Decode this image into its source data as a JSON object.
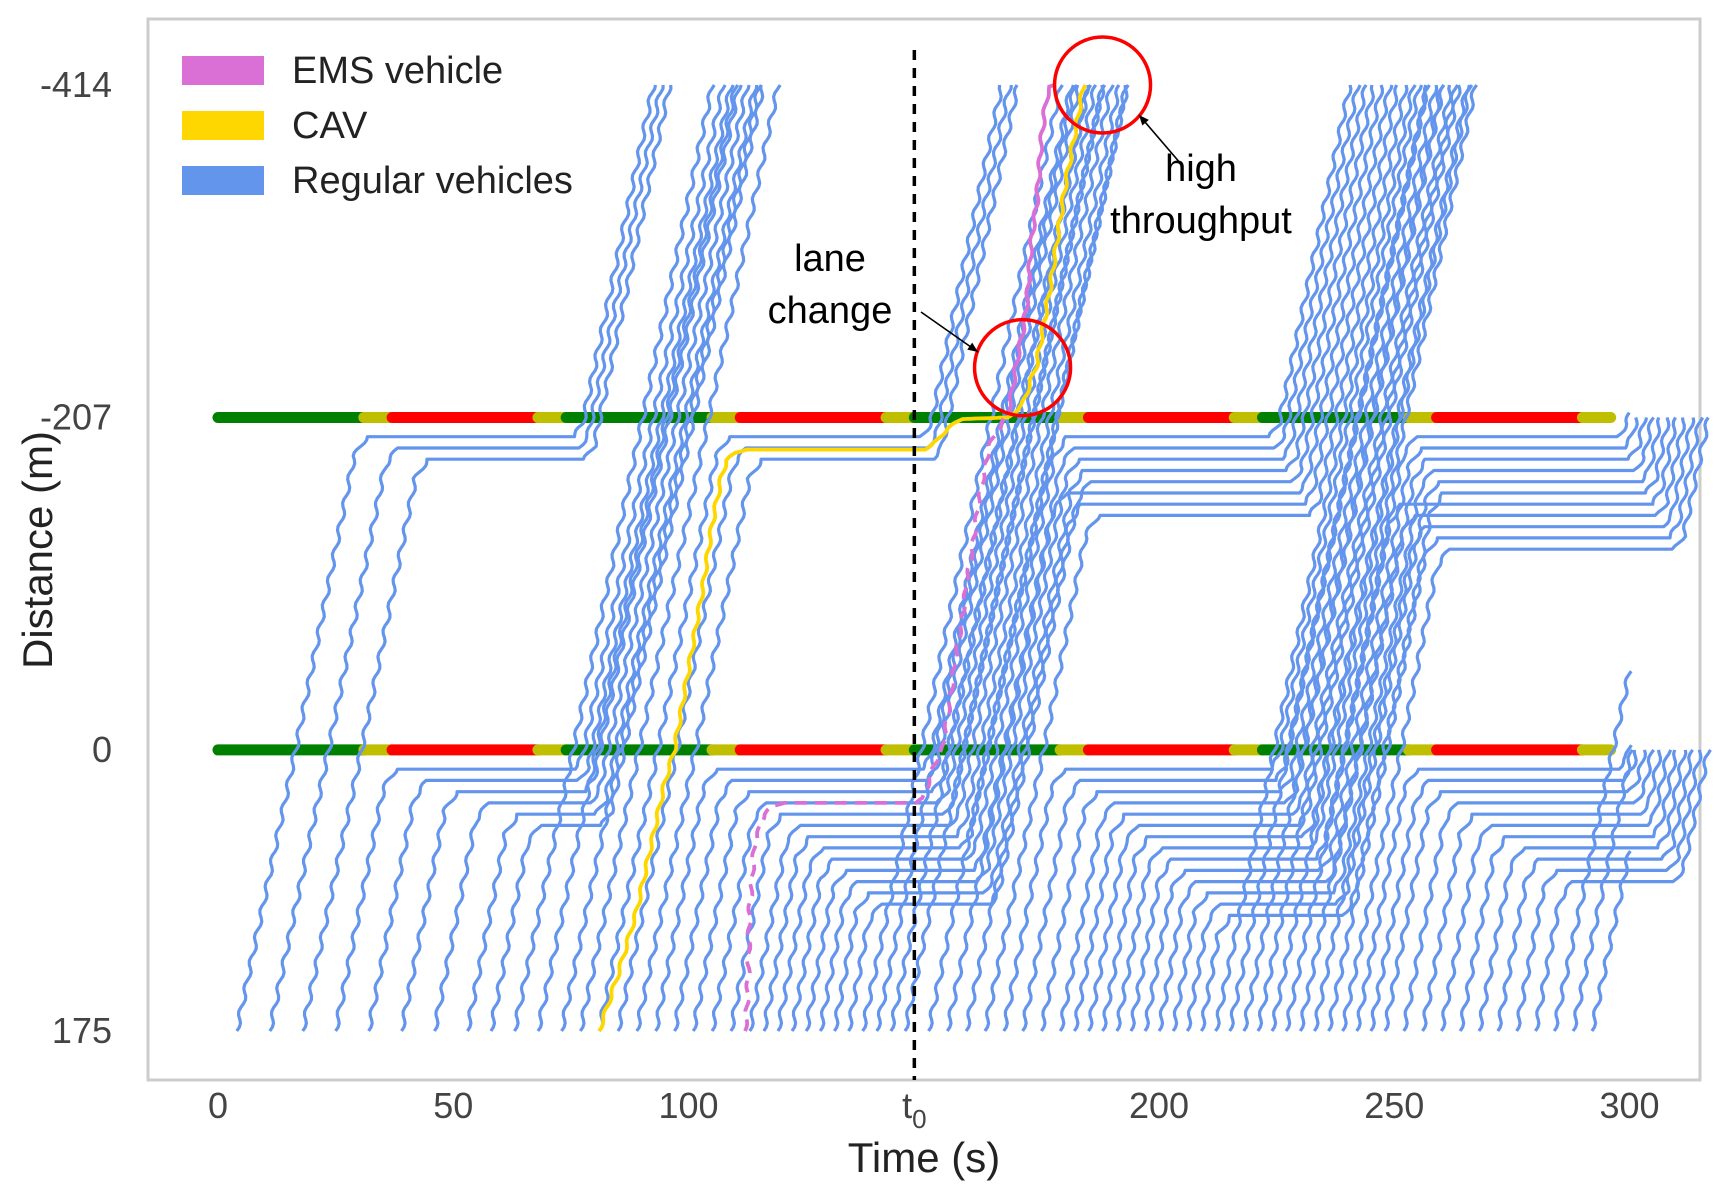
{
  "chart_data": {
    "type": "line",
    "xlabel": "Time (s)",
    "ylabel": "Distance (m)",
    "xlim": [
      -15,
      311
    ],
    "ylim": [
      175,
      -414
    ],
    "x_ticks": [
      {
        "value": 0,
        "label": "0"
      },
      {
        "value": 50,
        "label": "50"
      },
      {
        "value": 100,
        "label": "100"
      },
      {
        "value": 148,
        "label": "t",
        "sub": "0"
      },
      {
        "value": 200,
        "label": "200"
      },
      {
        "value": 250,
        "label": "250"
      },
      {
        "value": 300,
        "label": "300"
      }
    ],
    "y_ticks": [
      {
        "value": -414,
        "label": "-414"
      },
      {
        "value": -207,
        "label": "-207"
      },
      {
        "value": 0,
        "label": "0"
      },
      {
        "value": 175,
        "label": "175"
      }
    ],
    "grid": false,
    "legend_position": "top-left",
    "legend": [
      {
        "name": "EMS vehicle",
        "color": "#da70d6"
      },
      {
        "name": "CAV",
        "color": "#ffd700"
      },
      {
        "name": "Regular vehicles",
        "color": "#6495ed"
      }
    ],
    "t0_marker": {
      "x": 148,
      "label": "t",
      "sub": "0"
    },
    "signal_phases": {
      "positions": [
        -207,
        0
      ],
      "cycle_length": 74,
      "green": 31,
      "yellow": 6,
      "red": 31,
      "colors": {
        "green": "#008000",
        "yellow": "#bfbf00",
        "red": "#ff0000"
      },
      "start": 0,
      "end": 296
    },
    "regular_trajectories": {
      "entry_position": 175,
      "exit_position": -414,
      "speed_mps": 14,
      "queue_spacing_m": 7,
      "entry_times": [
        4,
        11,
        18,
        25,
        32,
        39,
        46,
        53,
        58,
        63,
        68,
        73,
        77,
        81,
        85,
        89,
        93,
        97,
        101,
        105,
        109,
        113,
        116,
        119,
        122,
        125,
        128,
        131,
        134,
        137,
        140,
        143,
        146,
        151,
        155,
        159,
        163,
        167,
        171,
        175,
        179,
        182,
        185,
        188,
        191,
        194,
        197,
        200,
        203,
        206,
        209,
        212,
        215,
        218,
        221,
        224,
        227,
        230,
        233,
        236,
        239,
        242,
        245,
        248,
        252,
        256,
        260,
        264,
        268,
        272,
        276,
        280,
        284,
        288,
        292
      ]
    },
    "series": [
      {
        "name": "CAV",
        "color": "#ffd700",
        "x": [
          81,
          85,
          89,
          92,
          95,
          97,
          100,
          103,
          105,
          107,
          108,
          110,
          112,
          140,
          150,
          152,
          155,
          158,
          168,
          171,
          174,
          177,
          180,
          184
        ],
        "y": [
          175,
          140,
          100,
          60,
          20,
          0,
          -50,
          -100,
          -140,
          -170,
          -180,
          -185,
          -187,
          -187,
          -187,
          -190,
          -200,
          -206,
          -207,
          -215,
          -240,
          -290,
          -350,
          -414
        ]
      },
      {
        "name": "EMS vehicle",
        "dashed_until": 168,
        "color": "#da70d6",
        "x": [
          112,
          112.5,
          113,
          114,
          116,
          118,
          120,
          140,
          148,
          150,
          152,
          154,
          156,
          158,
          160,
          162,
          164,
          166,
          168,
          170,
          171,
          172,
          173,
          174,
          175,
          176,
          177,
          178
        ],
        "y": [
          175,
          160,
          100,
          60,
          40,
          35,
          33,
          33,
          33,
          30,
          10,
          0,
          -40,
          -80,
          -120,
          -160,
          -190,
          -200,
          -210,
          -245,
          -260,
          -280,
          -320,
          -340,
          -380,
          -405,
          -413,
          -414
        ]
      }
    ],
    "annotations": [
      {
        "text": [
          "lane",
          "change"
        ],
        "target": {
          "x": 171,
          "y": -238
        }
      },
      {
        "text": [
          "high",
          "throughput"
        ],
        "target": {
          "x": 188,
          "y": -414
        }
      }
    ]
  }
}
